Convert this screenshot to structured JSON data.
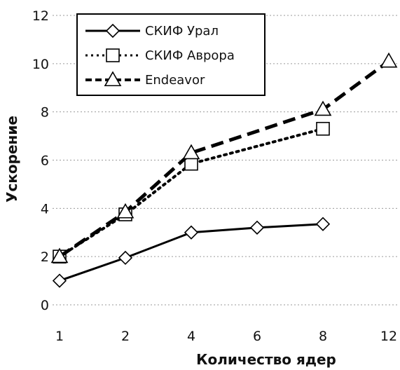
{
  "chart_data": {
    "type": "line",
    "categories": [
      "1",
      "2",
      "4",
      "6",
      "8",
      "12"
    ],
    "xlabel": "Количество ядер",
    "ylabel": "Ускорение",
    "ylim": [
      0,
      12
    ],
    "yticks": [
      "0",
      "2",
      "4",
      "6",
      "8",
      "10",
      "12"
    ],
    "grid": true,
    "legend_position": "top-left",
    "series": [
      {
        "name": "СКИФ Урал",
        "style": "solid",
        "marker": "diamond",
        "color": "#000000",
        "x": [
          "1",
          "2",
          "4",
          "6",
          "8"
        ],
        "values": [
          1.0,
          1.95,
          3.0,
          3.2,
          3.35
        ]
      },
      {
        "name": "СКИФ Аврора",
        "style": "dotted",
        "marker": "square",
        "color": "#000000",
        "x": [
          "1",
          "2",
          "4",
          "8"
        ],
        "values": [
          2.0,
          3.75,
          5.85,
          7.3
        ]
      },
      {
        "name": "Endeavor",
        "style": "dashed",
        "marker": "triangle",
        "color": "#000000",
        "x": [
          "1",
          "2",
          "4",
          "8",
          "12"
        ],
        "values": [
          2.0,
          3.85,
          6.3,
          8.1,
          10.1
        ]
      }
    ]
  }
}
